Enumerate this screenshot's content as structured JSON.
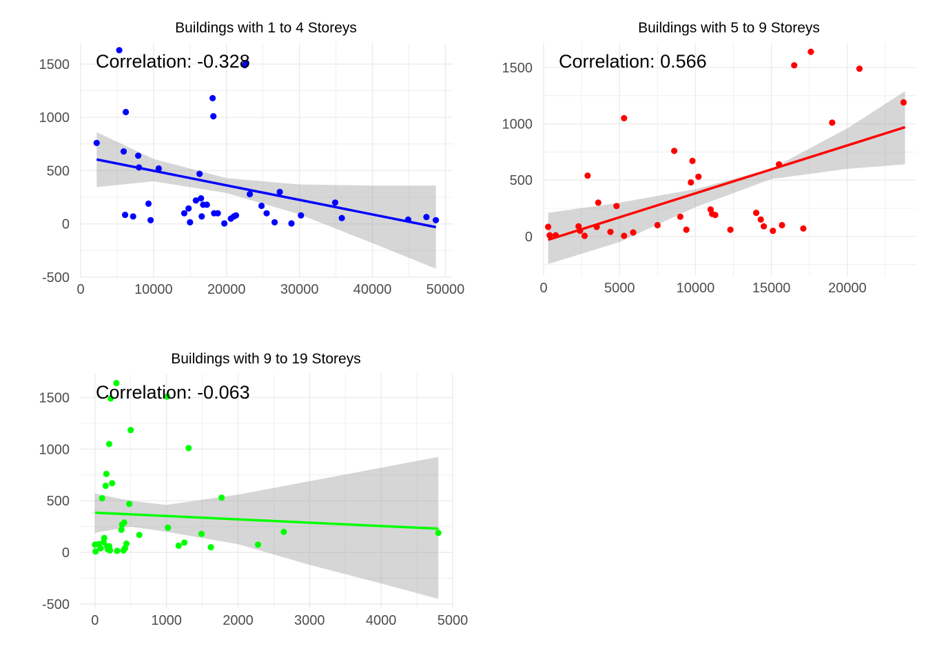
{
  "chart_data": [
    {
      "type": "scatter",
      "title": "Buildings with 1 to 4 Storeys",
      "annotation": "Correlation: -0.328",
      "xlabel": "",
      "ylabel": "",
      "xlim": [
        0,
        51000
      ],
      "ylim": [
        -500,
        1700
      ],
      "xticks": [
        0,
        10000,
        20000,
        30000,
        40000,
        50000
      ],
      "xtick_labels": [
        "0",
        "10000",
        "20000",
        "30000",
        "40000",
        "50000"
      ],
      "yticks": [
        -500,
        0,
        500,
        1000,
        1500
      ],
      "ytick_labels": [
        "-500",
        "0",
        "500",
        "1000",
        "1500"
      ],
      "color": "#0000ff",
      "grid": true,
      "fit": {
        "x": [
          2200,
          48700
        ],
        "y": [
          605,
          -30
        ]
      },
      "band": {
        "x": [
          2200,
          10000,
          20000,
          30000,
          40000,
          48700
        ],
        "upper": [
          860,
          610,
          430,
          370,
          360,
          360
        ],
        "lower": [
          345,
          400,
          290,
          90,
          -180,
          -420
        ]
      },
      "points": {
        "x": [
          2200,
          5300,
          5900,
          6100,
          6200,
          7200,
          7900,
          8000,
          9300,
          9600,
          10700,
          14200,
          14800,
          15000,
          15800,
          16300,
          16500,
          16600,
          16800,
          17300,
          18100,
          18200,
          18300,
          18800,
          19700,
          20600,
          21000,
          21300,
          22500,
          22700,
          23200,
          24800,
          25500,
          26600,
          27300,
          28900,
          30200,
          34900,
          35800,
          44900,
          47400,
          48700
        ],
        "y": [
          760,
          1630,
          680,
          85,
          1050,
          70,
          640,
          530,
          190,
          35,
          520,
          100,
          145,
          15,
          220,
          470,
          240,
          70,
          180,
          180,
          1180,
          1010,
          100,
          100,
          5,
          50,
          70,
          80,
          1490,
          1510,
          280,
          170,
          100,
          15,
          300,
          5,
          80,
          200,
          55,
          40,
          65,
          35
        ]
      }
    },
    {
      "type": "scatter",
      "title": "Buildings with 5 to 9 Storeys",
      "annotation": "Correlation: 0.566",
      "xlabel": "",
      "ylabel": "",
      "xlim": [
        0,
        24500
      ],
      "ylim": [
        -350,
        1720
      ],
      "xticks": [
        0,
        5000,
        10000,
        15000,
        20000
      ],
      "xtick_labels": [
        "0",
        "5000",
        "10000",
        "15000",
        "20000"
      ],
      "yticks": [
        0,
        500,
        1000,
        1500
      ],
      "ytick_labels": [
        "0",
        "500",
        "1000",
        "1500"
      ],
      "color": "#ff0000",
      "grid": true,
      "fit": {
        "x": [
          300,
          23800
        ],
        "y": [
          -30,
          970
        ]
      },
      "band": {
        "x": [
          300,
          5000,
          10000,
          15000,
          20000,
          23800
        ],
        "upper": [
          210,
          300,
          420,
          600,
          960,
          1290
        ],
        "lower": [
          -245,
          -50,
          260,
          510,
          600,
          640
        ]
      },
      "points": {
        "x": [
          300,
          400,
          800,
          2300,
          2400,
          2700,
          2900,
          3500,
          3600,
          4400,
          4800,
          5300,
          5300,
          5900,
          7500,
          8600,
          9000,
          9400,
          9700,
          9800,
          10200,
          11000,
          11100,
          11300,
          12300,
          14000,
          14300,
          14500,
          15100,
          15500,
          15700,
          16500,
          17100,
          17600,
          19000,
          20800,
          23700
        ],
        "y": [
          85,
          10,
          10,
          90,
          50,
          5,
          540,
          85,
          300,
          40,
          270,
          5,
          1050,
          35,
          100,
          760,
          175,
          60,
          480,
          670,
          530,
          240,
          200,
          190,
          60,
          210,
          150,
          90,
          50,
          640,
          100,
          1520,
          70,
          1640,
          1010,
          1490,
          1190
        ]
      }
    },
    {
      "type": "scatter",
      "title": "Buildings with 9 to 19 Storeys",
      "annotation": "Correlation: -0.063",
      "xlabel": "",
      "ylabel": "",
      "xlim": [
        -200,
        5000
      ],
      "ylim": [
        -540,
        1730
      ],
      "xticks": [
        0,
        1000,
        2000,
        3000,
        4000,
        5000
      ],
      "xtick_labels": [
        "0",
        "1000",
        "2000",
        "3000",
        "4000",
        "5000"
      ],
      "yticks": [
        -500,
        0,
        500,
        1000,
        1500
      ],
      "ytick_labels": [
        "-500",
        "0",
        "500",
        "1000",
        "1500"
      ],
      "color": "#00ff00",
      "grid": true,
      "fit": {
        "x": [
          0,
          4800
        ],
        "y": [
          385,
          230
        ]
      },
      "band": {
        "x": [
          0,
          500,
          1000,
          2000,
          3000,
          4000,
          4800
        ],
        "upper": [
          570,
          500,
          460,
          560,
          690,
          820,
          925
        ],
        "lower": [
          190,
          250,
          200,
          80,
          -120,
          -300,
          -450
        ]
      },
      "points": {
        "x": [
          0,
          10,
          50,
          80,
          100,
          120,
          130,
          150,
          160,
          170,
          180,
          200,
          200,
          210,
          220,
          240,
          300,
          310,
          370,
          380,
          400,
          410,
          420,
          440,
          480,
          500,
          620,
          1010,
          1020,
          1170,
          1250,
          1310,
          1490,
          1620,
          1770,
          2280,
          2640,
          4800
        ],
        "y": [
          75,
          10,
          80,
          40,
          525,
          100,
          140,
          645,
          760,
          60,
          30,
          60,
          1050,
          20,
          1490,
          670,
          1640,
          15,
          220,
          270,
          20,
          290,
          40,
          85,
          470,
          1185,
          170,
          1510,
          240,
          65,
          95,
          1010,
          180,
          50,
          530,
          75,
          200,
          190
        ]
      }
    }
  ]
}
